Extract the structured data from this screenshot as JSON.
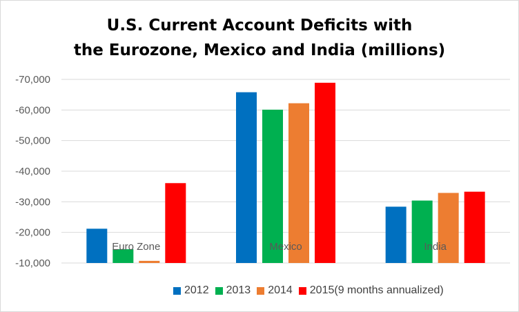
{
  "chart_data": {
    "type": "bar",
    "title_lines": [
      "U.S. Current Account Deficits with",
      "the Eurozone, Mexico and India (millions)"
    ],
    "categories": [
      "Euro Zone",
      "Mexico",
      "India"
    ],
    "y_ticks": [
      "-70,000",
      "-60,000",
      "-50,000",
      "-40,000",
      "-30,000",
      "-20,000",
      "-10,000"
    ],
    "ylim": [
      -10000,
      -70000
    ],
    "series": [
      {
        "name": "2012",
        "color": "#0070c0",
        "values": [
          -21200,
          -65800,
          -28400
        ]
      },
      {
        "name": "2013",
        "color": "#00b050",
        "values": [
          -14500,
          -60100,
          -30400
        ]
      },
      {
        "name": "2014",
        "color": "#ed7d31",
        "values": [
          -10700,
          -62200,
          -32900
        ]
      },
      {
        "name": "2015(9 months annualized)",
        "color": "#ff0000",
        "values": [
          -36100,
          -68900,
          -33300
        ]
      }
    ],
    "grid": true,
    "legend_position": "bottom"
  }
}
